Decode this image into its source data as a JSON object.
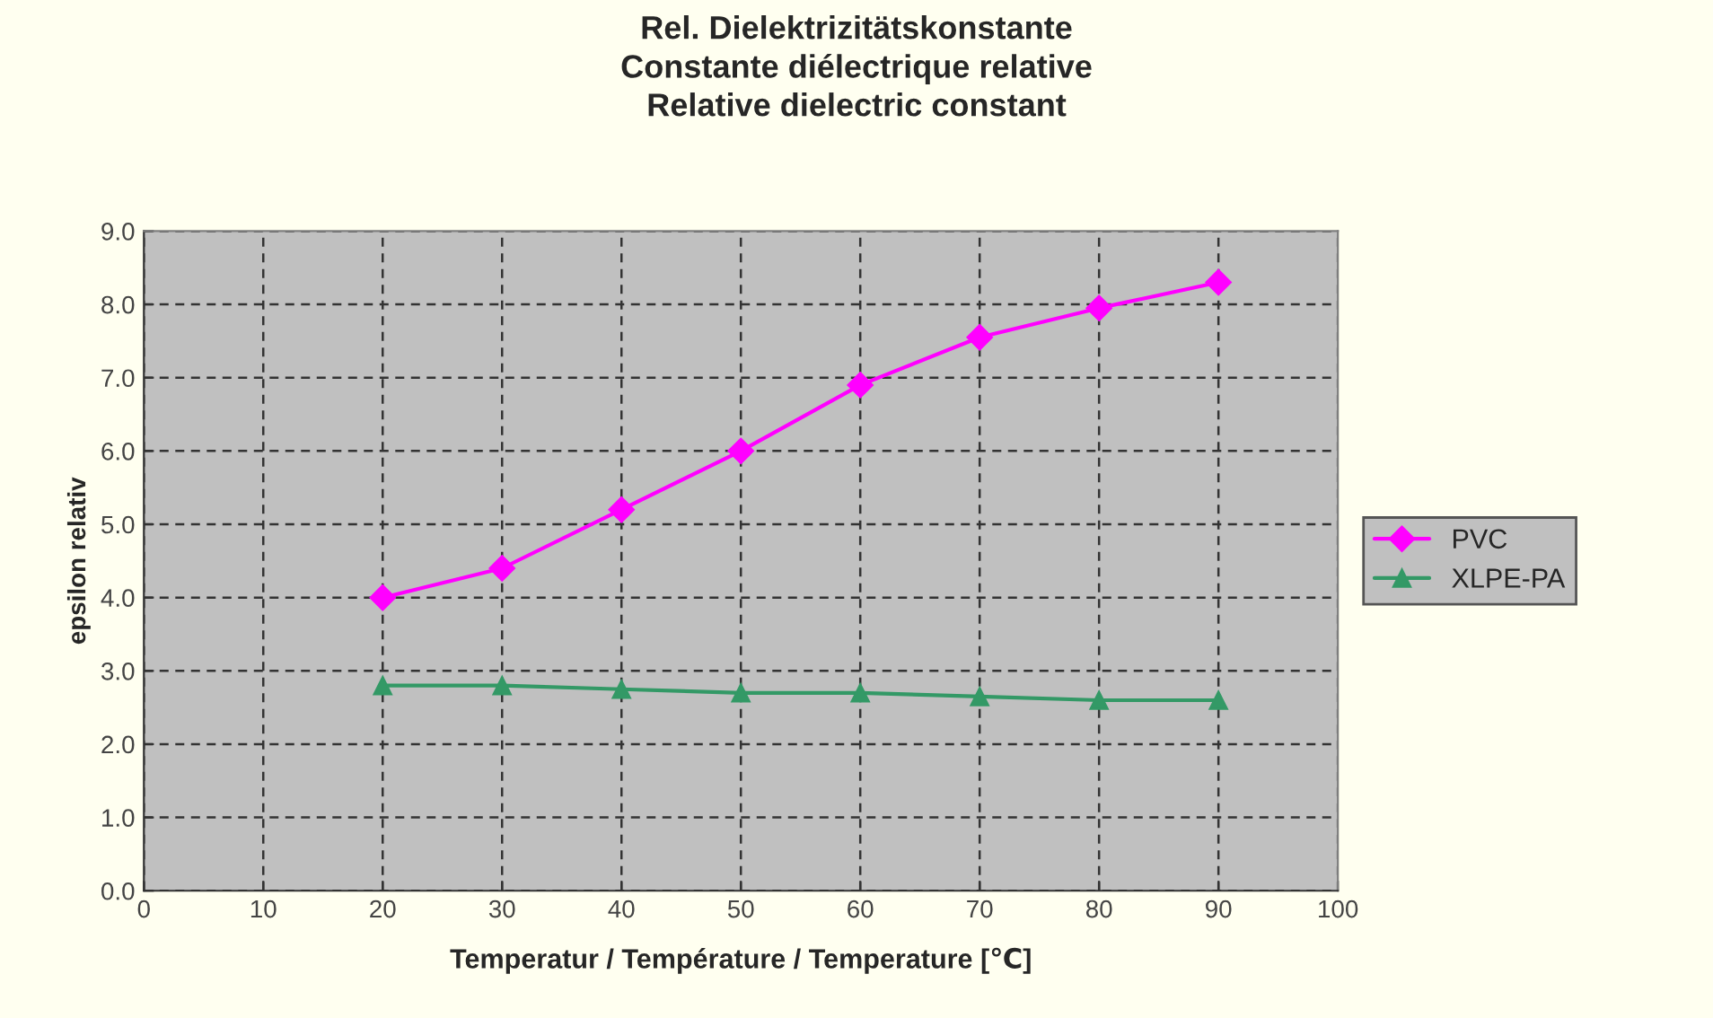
{
  "chart_data": {
    "type": "line",
    "title": "Rel. Dielektrizitätskonstante\nConstante diélectrique relative\nRelative dielectric constant",
    "xlabel": "Temperatur / Température / Temperature [℃]",
    "ylabel": "epsilon relativ",
    "x": [
      20,
      30,
      40,
      50,
      60,
      70,
      80,
      90
    ],
    "series": [
      {
        "name": "PVC",
        "color": "#ff00ff",
        "marker": "diamond",
        "values": [
          4.0,
          4.4,
          5.2,
          6.0,
          6.9,
          7.55,
          7.95,
          8.3
        ]
      },
      {
        "name": "XLPE-PA",
        "color": "#339966",
        "marker": "triangle",
        "values": [
          2.8,
          2.8,
          2.75,
          2.7,
          2.7,
          2.65,
          2.6,
          2.6
        ]
      }
    ],
    "xlim": [
      0,
      100
    ],
    "xticks": [
      0,
      10,
      20,
      30,
      40,
      50,
      60,
      70,
      80,
      90,
      100
    ],
    "ylim": [
      0,
      9
    ],
    "yticks": [
      {
        "value": 0,
        "label": "0.0"
      },
      {
        "value": 1,
        "label": "1.0"
      },
      {
        "value": 2,
        "label": "2.0"
      },
      {
        "value": 3,
        "label": "3.0"
      },
      {
        "value": 4,
        "label": "4.0"
      },
      {
        "value": 5,
        "label": "5.0"
      },
      {
        "value": 6,
        "label": "6.0"
      },
      {
        "value": 7,
        "label": "7.0"
      },
      {
        "value": 8,
        "label": "8.0"
      },
      {
        "value": 9,
        "label": "9.0"
      }
    ],
    "grid": true,
    "legend": "right",
    "line_style": "solid"
  }
}
